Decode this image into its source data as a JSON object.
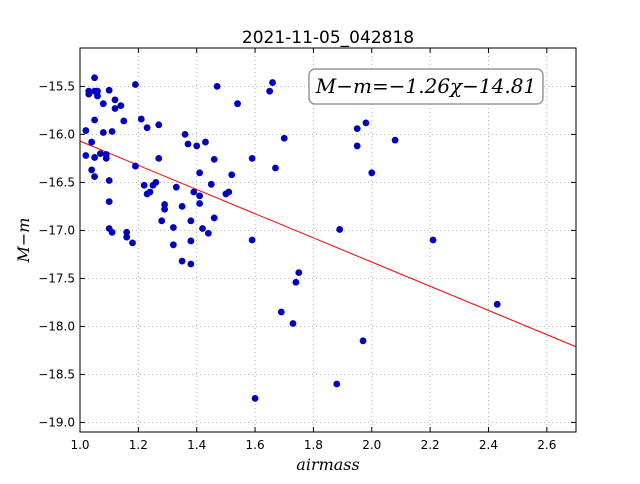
{
  "chart_data": {
    "type": "scatter",
    "title": "2021-11-05_042818",
    "xlabel": "airmass",
    "ylabel": "M−m",
    "xlim": [
      1.0,
      2.7
    ],
    "ylim": [
      -15.1,
      -19.1
    ],
    "y_inverted": true,
    "grid": true,
    "grid_style": "dotted",
    "x_ticks": [
      1.0,
      1.2,
      1.4,
      1.6,
      1.8,
      2.0,
      2.2,
      2.4,
      2.6
    ],
    "x_tick_labels": [
      "1.0",
      "1.2",
      "1.4",
      "1.6",
      "1.8",
      "2.0",
      "2.2",
      "2.4",
      "2.6"
    ],
    "y_ticks": [
      -15.5,
      -16.0,
      -16.5,
      -17.0,
      -17.5,
      -18.0,
      -18.5,
      -19.0
    ],
    "y_tick_labels": [
      "−15.5",
      "−16.0",
      "−16.5",
      "−17.0",
      "−17.5",
      "−18.0",
      "−18.5",
      "−19.0"
    ],
    "annotation": "M−m=−1.26χ−14.81",
    "fit": {
      "slope": -1.26,
      "intercept": -14.81,
      "x_range": [
        1.0,
        2.7
      ]
    },
    "colors": {
      "points": "#0000bf",
      "fit_line": "#ff0000",
      "axes": "#000000",
      "grid": "#a0a0a0"
    },
    "series": [
      {
        "points": [
          [
            1.02,
            -15.96
          ],
          [
            1.02,
            -16.22
          ],
          [
            1.03,
            -15.55
          ],
          [
            1.03,
            -15.58
          ],
          [
            1.04,
            -16.37
          ],
          [
            1.04,
            -16.08
          ],
          [
            1.05,
            -15.55
          ],
          [
            1.05,
            -16.44
          ],
          [
            1.05,
            -15.85
          ],
          [
            1.05,
            -16.24
          ],
          [
            1.05,
            -15.41
          ],
          [
            1.06,
            -15.55
          ],
          [
            1.06,
            -15.6
          ],
          [
            1.07,
            -16.2
          ],
          [
            1.08,
            -15.68
          ],
          [
            1.08,
            -15.98
          ],
          [
            1.09,
            -16.25
          ],
          [
            1.09,
            -16.21
          ],
          [
            1.1,
            -15.54
          ],
          [
            1.1,
            -16.48
          ],
          [
            1.1,
            -16.7
          ],
          [
            1.1,
            -16.98
          ],
          [
            1.11,
            -17.02
          ],
          [
            1.11,
            -15.97
          ],
          [
            1.12,
            -15.73
          ],
          [
            1.12,
            -15.64
          ],
          [
            1.14,
            -15.7
          ],
          [
            1.15,
            -15.86
          ],
          [
            1.16,
            -17.07
          ],
          [
            1.16,
            -17.02
          ],
          [
            1.18,
            -17.13
          ],
          [
            1.19,
            -16.33
          ],
          [
            1.19,
            -15.48
          ],
          [
            1.21,
            -15.84
          ],
          [
            1.22,
            -16.53
          ],
          [
            1.23,
            -16.62
          ],
          [
            1.23,
            -15.93
          ],
          [
            1.24,
            -16.6
          ],
          [
            1.25,
            -16.53
          ],
          [
            1.26,
            -16.5
          ],
          [
            1.27,
            -16.25
          ],
          [
            1.27,
            -15.9
          ],
          [
            1.28,
            -16.9
          ],
          [
            1.29,
            -16.78
          ],
          [
            1.29,
            -16.73
          ],
          [
            1.32,
            -17.15
          ],
          [
            1.32,
            -16.97
          ],
          [
            1.33,
            -16.55
          ],
          [
            1.35,
            -17.32
          ],
          [
            1.35,
            -16.75
          ],
          [
            1.36,
            -16.0
          ],
          [
            1.37,
            -16.1
          ],
          [
            1.38,
            -17.11
          ],
          [
            1.38,
            -16.9
          ],
          [
            1.38,
            -17.35
          ],
          [
            1.39,
            -16.6
          ],
          [
            1.4,
            -16.12
          ],
          [
            1.41,
            -16.4
          ],
          [
            1.41,
            -16.64
          ],
          [
            1.41,
            -16.72
          ],
          [
            1.42,
            -16.98
          ],
          [
            1.43,
            -16.08
          ],
          [
            1.44,
            -17.03
          ],
          [
            1.45,
            -16.52
          ],
          [
            1.46,
            -16.87
          ],
          [
            1.46,
            -16.26
          ],
          [
            1.47,
            -15.5
          ],
          [
            1.5,
            -16.62
          ],
          [
            1.51,
            -16.6
          ],
          [
            1.52,
            -16.42
          ],
          [
            1.54,
            -15.68
          ],
          [
            1.59,
            -16.25
          ],
          [
            1.59,
            -17.1
          ],
          [
            1.6,
            -18.75
          ],
          [
            1.65,
            -15.55
          ],
          [
            1.66,
            -15.46
          ],
          [
            1.67,
            -16.35
          ],
          [
            1.69,
            -17.85
          ],
          [
            1.7,
            -16.04
          ],
          [
            1.73,
            -17.97
          ],
          [
            1.74,
            -17.54
          ],
          [
            1.75,
            -17.44
          ],
          [
            1.88,
            -18.6
          ],
          [
            1.89,
            -16.99
          ],
          [
            1.95,
            -15.94
          ],
          [
            1.95,
            -16.12
          ],
          [
            1.97,
            -18.15
          ],
          [
            1.98,
            -15.88
          ],
          [
            2.0,
            -16.4
          ],
          [
            2.08,
            -16.06
          ],
          [
            2.21,
            -17.1
          ],
          [
            2.43,
            -17.77
          ]
        ]
      }
    ]
  }
}
